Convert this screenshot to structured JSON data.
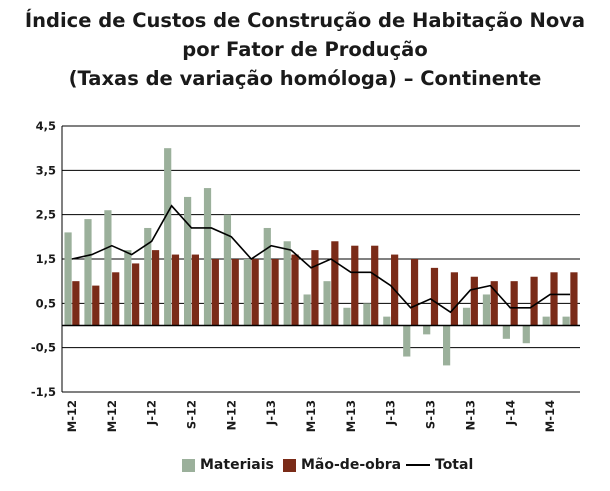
{
  "chart_data": {
    "type": "bar",
    "title_lines": [
      "Índice de Custos de Construção de Habitação Nova",
      "por Fator de Produção",
      "(Taxas de variação homóloga) – Continente"
    ],
    "ylim": [
      -1.5,
      4.5
    ],
    "yticks": [
      4.5,
      3.5,
      2.5,
      1.5,
      0.5,
      -0.5,
      -1.5
    ],
    "ytick_labels": [
      "4,5",
      "3,5",
      "2,5",
      "1,5",
      "0,5",
      "-0,5",
      "-1,5"
    ],
    "grid": true,
    "x_tick_labels": [
      "M-12",
      "M-12",
      "J-12",
      "S-12",
      "N-12",
      "J-13",
      "M-13",
      "M-13",
      "J-13",
      "S-13",
      "N-13",
      "J-14",
      "M-14"
    ],
    "n_periods": 26,
    "series": [
      {
        "name": "Materiais",
        "type": "bar",
        "color": "#9bb09b",
        "values": [
          2.1,
          2.4,
          2.6,
          1.7,
          2.2,
          4.0,
          2.9,
          3.1,
          2.5,
          1.5,
          2.2,
          1.9,
          0.7,
          1.0,
          0.4,
          0.5,
          0.2,
          -0.7,
          -0.2,
          -0.9,
          0.4,
          0.7,
          -0.3,
          -0.4,
          0.2,
          0.2
        ]
      },
      {
        "name": "Mão-de-obra",
        "type": "bar",
        "color": "#7a2b18",
        "values": [
          1.0,
          0.9,
          1.2,
          1.4,
          1.7,
          1.6,
          1.6,
          1.5,
          1.5,
          1.5,
          1.5,
          1.6,
          1.7,
          1.9,
          1.8,
          1.8,
          1.6,
          1.5,
          1.3,
          1.2,
          1.1,
          1.0,
          1.0,
          1.1,
          1.2,
          1.2
        ]
      },
      {
        "name": "Total",
        "type": "line",
        "color": "#000000",
        "values": [
          1.5,
          1.6,
          1.8,
          1.6,
          1.9,
          2.7,
          2.2,
          2.2,
          2.0,
          1.5,
          1.8,
          1.7,
          1.3,
          1.5,
          1.2,
          1.2,
          0.9,
          0.4,
          0.6,
          0.3,
          0.8,
          0.9,
          0.4,
          0.4,
          0.7,
          0.7
        ]
      }
    ],
    "legend": [
      "Materiais",
      "Mão-de-obra",
      "Total"
    ],
    "legend_position": "bottom"
  }
}
